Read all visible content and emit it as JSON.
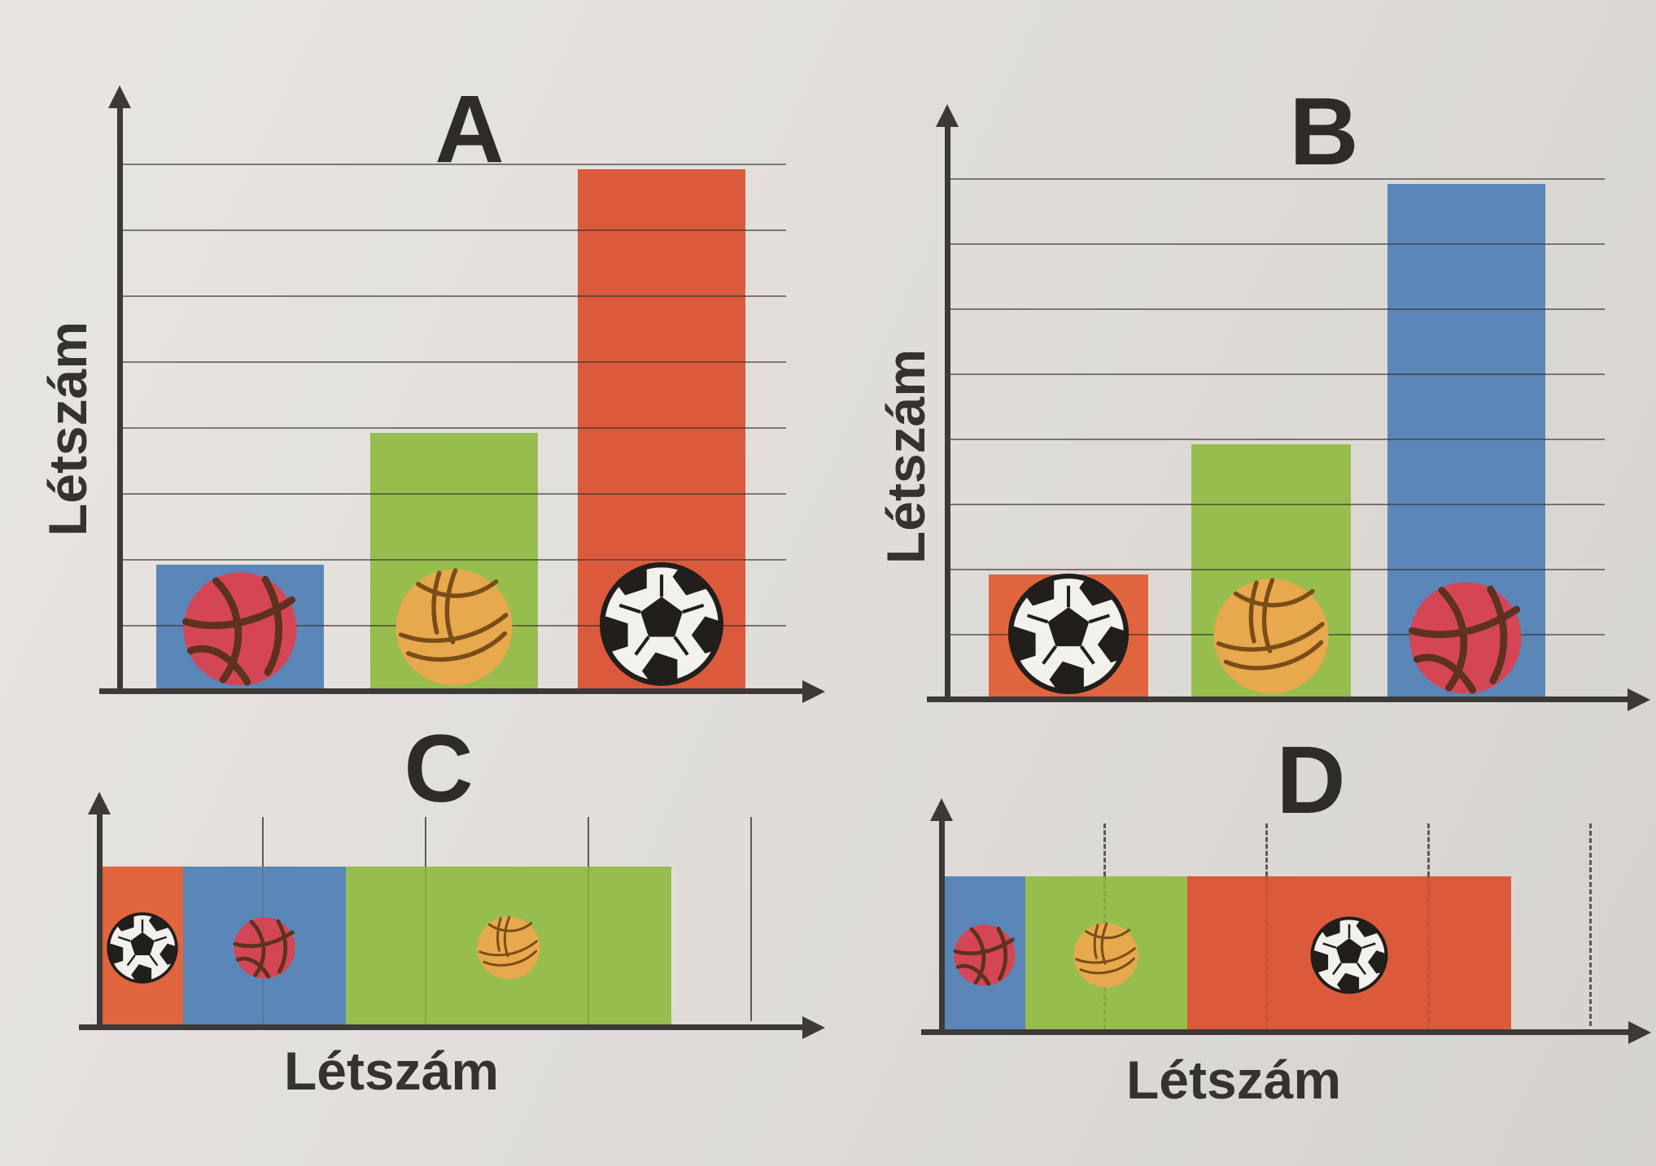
{
  "charts": {
    "a": {
      "label": "A",
      "y_axis_label": "Létszám"
    },
    "b": {
      "label": "B",
      "y_axis_label": "Létszám"
    },
    "c": {
      "label": "C",
      "x_axis_label": "Létszám"
    },
    "d": {
      "label": "D",
      "x_axis_label": "Létszám"
    }
  },
  "colors": {
    "paper": "#e1deda",
    "axis": "#3c3936",
    "gridline": "#4e4a45",
    "text": "#34312d",
    "bar_blue": "#5a87b8",
    "bar_green": "#97bd4e",
    "bar_red": "#db5a3c",
    "bar_orange": "#e0643d",
    "basketball_fill": "#d44656",
    "basketball_seam": "#5e3120",
    "volleyball_fill": "#e7a84e",
    "volleyball_seam": "#7a4d17",
    "football_fill": "#f3f1ee",
    "football_seam": "#211e1b"
  },
  "chart_data": [
    {
      "id": "A",
      "type": "bar",
      "orientation": "vertical",
      "stacked": false,
      "title": "A",
      "ylabel": "Létszám",
      "xlabel": "",
      "grid": "horizontal gridlines",
      "gridline_count": 8,
      "ylim": [
        0,
        8
      ],
      "legend": "none",
      "units": "gridline intervals",
      "categories": [
        "basketball",
        "volleyball",
        "football"
      ],
      "category_icons": [
        "basketball-icon",
        "volleyball-icon",
        "football-icon"
      ],
      "values": [
        2,
        4,
        8
      ],
      "bar_colors": [
        "#5a87b8",
        "#97bd4e",
        "#db5a3c"
      ]
    },
    {
      "id": "B",
      "type": "bar",
      "orientation": "vertical",
      "stacked": false,
      "title": "B",
      "ylabel": "Létszám",
      "xlabel": "",
      "grid": "horizontal gridlines",
      "gridline_count": 8,
      "ylim": [
        0,
        8
      ],
      "legend": "none",
      "units": "gridline intervals",
      "categories": [
        "football",
        "volleyball",
        "basketball"
      ],
      "category_icons": [
        "football-icon",
        "volleyball-icon",
        "basketball-icon"
      ],
      "values": [
        2,
        4,
        8
      ],
      "bar_colors": [
        "#e0643d",
        "#97bd4e",
        "#5a87b8"
      ]
    },
    {
      "id": "C",
      "type": "bar",
      "orientation": "horizontal",
      "stacked": true,
      "title": "C",
      "xlabel": "Létszám",
      "ylabel": "",
      "grid": "vertical tick lines",
      "gridline_style": "solid",
      "tick_units": [
        1,
        2,
        3,
        4
      ],
      "xlim": [
        0,
        4
      ],
      "units": "gridline intervals",
      "total_units": 3.5,
      "segments": [
        {
          "category": "football",
          "icon": "football-icon",
          "value": 0.5,
          "color": "#e0643d"
        },
        {
          "category": "basketball",
          "icon": "basketball-icon",
          "value": 1,
          "color": "#5a87b8"
        },
        {
          "category": "volleyball",
          "icon": "volleyball-icon",
          "value": 2,
          "color": "#97bd4e"
        }
      ]
    },
    {
      "id": "D",
      "type": "bar",
      "orientation": "horizontal",
      "stacked": true,
      "title": "D",
      "xlabel": "Létszám",
      "ylabel": "",
      "grid": "vertical tick lines",
      "gridline_style": "dashed",
      "tick_units": [
        1,
        2,
        3,
        4
      ],
      "xlim": [
        0,
        4
      ],
      "units": "gridline intervals",
      "total_units": 3.5,
      "segments": [
        {
          "category": "basketball",
          "icon": "basketball-icon",
          "value": 0.5,
          "color": "#5a87b8"
        },
        {
          "category": "volleyball",
          "icon": "volleyball-icon",
          "value": 1,
          "color": "#97bd4e"
        },
        {
          "category": "football",
          "icon": "football-icon",
          "value": 2,
          "color": "#db5a3c"
        }
      ]
    }
  ]
}
